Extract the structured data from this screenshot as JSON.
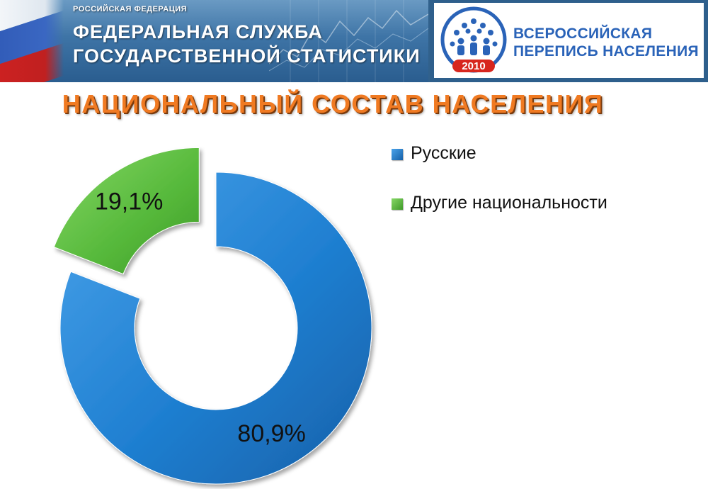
{
  "header": {
    "country": "РОССИЙСКАЯ ФЕДЕРАЦИЯ",
    "service_line1": "ФЕДЕРАЛЬНАЯ СЛУЖБА",
    "service_line2": "ГОСУДАРСТВЕННОЙ СТАТИСТИКИ",
    "census_line1": "ВСЕРОССИЙСКАЯ",
    "census_line2": "ПЕРЕПИСЬ НАСЕЛЕНИЯ",
    "census_year": "2010"
  },
  "icons": {
    "flag": "russian-flag-icon",
    "census_logo": "census-people-icon"
  },
  "colors": {
    "title": "#f07a22",
    "russians": "#1f7fd1",
    "others": "#55b83a",
    "census_brand": "#2a63b8"
  },
  "chart_data": {
    "type": "pie",
    "variant": "exploded-donut",
    "title": "НАЦИОНАЛЬНЫЙ СОСТАВ НАСЕЛЕНИЯ",
    "series": [
      {
        "name": "Русские",
        "value": 80.9,
        "label": "80,9%",
        "color": "#1f7fd1"
      },
      {
        "name": "Другие национальности",
        "value": 19.1,
        "label": "19,1%",
        "color": "#55b83a"
      }
    ],
    "legend_position": "right"
  }
}
